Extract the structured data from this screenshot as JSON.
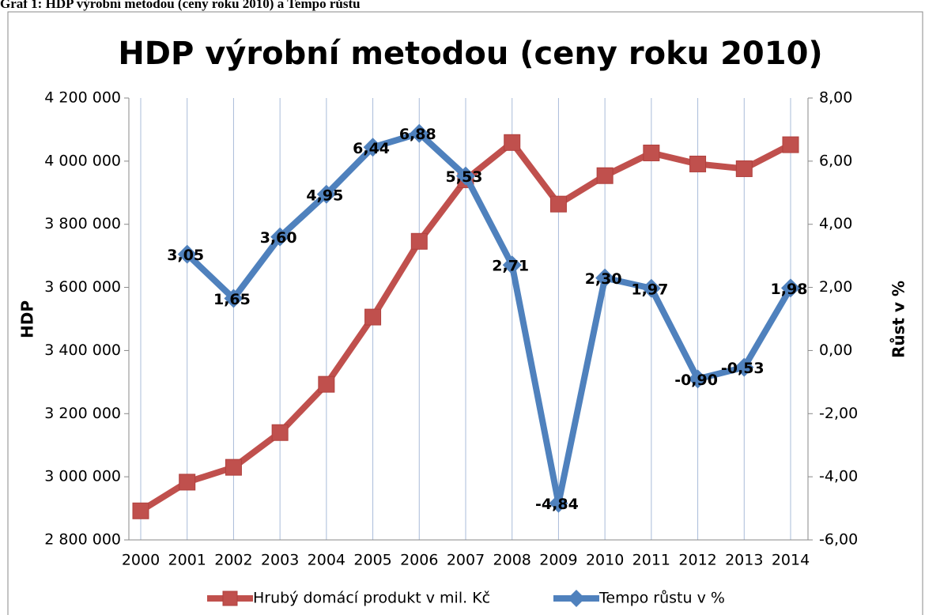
{
  "caption": "Graf 1: HDP výrobní metodou (ceny roku 2010) a Tempo růstu",
  "chart_data": {
    "type": "line",
    "title": "HDP výrobní metodou (ceny roku 2010)",
    "y_label": "HDP",
    "y2_label": "Růst v %",
    "categories": [
      "2000",
      "2001",
      "2002",
      "2003",
      "2004",
      "2005",
      "2006",
      "2007",
      "2008",
      "2009",
      "2010",
      "2011",
      "2012",
      "2013",
      "2014"
    ],
    "ylim": [
      2800000,
      4200000
    ],
    "yticks": [
      {
        "value": 2800000,
        "label": "2 800 000"
      },
      {
        "value": 3000000,
        "label": "3 000 000"
      },
      {
        "value": 3200000,
        "label": "3 200 000"
      },
      {
        "value": 3400000,
        "label": "3 400 000"
      },
      {
        "value": 3600000,
        "label": "3 600 000"
      },
      {
        "value": 3800000,
        "label": "3 800 000"
      },
      {
        "value": 4000000,
        "label": "4 000 000"
      },
      {
        "value": 4200000,
        "label": "4 200 000"
      }
    ],
    "y2lim": [
      -6,
      8
    ],
    "y2ticks": [
      {
        "value": -6,
        "label": "-6,00"
      },
      {
        "value": -4,
        "label": "-4,00"
      },
      {
        "value": -2,
        "label": "-2,00"
      },
      {
        "value": 0,
        "label": "0,00"
      },
      {
        "value": 2,
        "label": "2,00"
      },
      {
        "value": 4,
        "label": "4,00"
      },
      {
        "value": 6,
        "label": "6,00"
      },
      {
        "value": 8,
        "label": "8,00"
      }
    ],
    "grid": "vertical",
    "series": [
      {
        "name": "Hrubý domácí produkt v mil. Kč",
        "color": "#c0504d",
        "marker": "square",
        "values": [
          2892000,
          2983000,
          3030000,
          3140000,
          3293000,
          3506000,
          3746000,
          3941000,
          4059000,
          3864000,
          3954000,
          4026000,
          3991000,
          3976000,
          4052000
        ]
      },
      {
        "name": "Tempo růstu v %",
        "color": "#4f81bd",
        "marker": "diamond",
        "axis": "y2",
        "values": [
          null,
          3.05,
          1.65,
          3.6,
          4.95,
          6.44,
          6.88,
          5.53,
          2.71,
          -4.84,
          2.3,
          1.97,
          -0.9,
          -0.53,
          1.98
        ],
        "value_labels": [
          null,
          "3,05",
          "1,65",
          "3,60",
          "4,95",
          "6,44",
          "6,88",
          "5,53",
          "2,71",
          "-4,84",
          "2,30",
          "1,97",
          "-0,90",
          "-0,53",
          "1,98"
        ]
      }
    ]
  }
}
